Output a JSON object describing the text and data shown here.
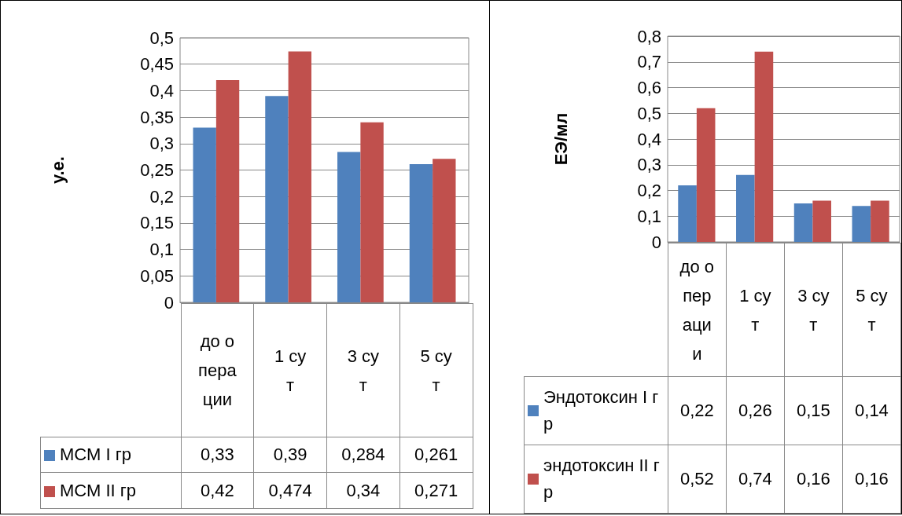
{
  "chart_data": [
    {
      "type": "bar",
      "ylabel": "у.е.",
      "categories": [
        "до операции",
        "1 сут",
        "3 сут",
        "5 сут"
      ],
      "ylim": [
        0,
        0.5
      ],
      "yticks": [
        0,
        {
          "value": 0.05,
          "label": "0,05"
        },
        {
          "value": 0.1,
          "label": "0,1"
        },
        {
          "value": 0.15,
          "label": "0,15"
        },
        {
          "value": 0.2,
          "label": "0,2"
        },
        {
          "value": 0.25,
          "label": "0,25"
        },
        {
          "value": 0.3,
          "label": "0,3"
        },
        {
          "value": 0.35,
          "label": "0,35"
        },
        {
          "value": 0.4,
          "label": "0,4"
        },
        {
          "value": 0.45,
          "label": "0,45"
        },
        {
          "value": 0.5,
          "label": "0,5"
        }
      ],
      "grid": "y",
      "legend": "bottom",
      "series": [
        {
          "name": "МСМ I гр",
          "color": "#4f81bd",
          "values": [
            0.33,
            0.39,
            0.284,
            0.261
          ],
          "value_labels": [
            "0,33",
            "0,39",
            "0,284",
            "0,261"
          ]
        },
        {
          "name": "МСМ II гр",
          "color": "#c0504d",
          "values": [
            0.42,
            0.474,
            0.34,
            0.271
          ],
          "value_labels": [
            "0,42",
            "0,474",
            "0,34",
            "0,271"
          ]
        }
      ]
    },
    {
      "type": "bar",
      "ylabel": "ЕЭ/мл",
      "categories": [
        "до операции",
        "1 сут",
        "3 сут",
        "5 сут"
      ],
      "ylim": [
        0,
        0.8
      ],
      "yticks": [
        0,
        {
          "value": 0.1,
          "label": "0,1"
        },
        {
          "value": 0.2,
          "label": "0,2"
        },
        {
          "value": 0.3,
          "label": "0,3"
        },
        {
          "value": 0.4,
          "label": "0,4"
        },
        {
          "value": 0.5,
          "label": "0,5"
        },
        {
          "value": 0.6,
          "label": "0,6"
        },
        {
          "value": 0.7,
          "label": "0,7"
        },
        {
          "value": 0.8,
          "label": "0,8"
        }
      ],
      "grid": "y",
      "legend": "bottom",
      "series": [
        {
          "name": "Эндотоксин I гр",
          "color": "#4f81bd",
          "values": [
            0.22,
            0.26,
            0.15,
            0.14
          ],
          "value_labels": [
            "0,22",
            "0,26",
            "0,15",
            "0,14"
          ]
        },
        {
          "name": "эндотоксин II гр",
          "color": "#c0504d",
          "values": [
            0.52,
            0.74,
            0.16,
            0.16
          ],
          "value_labels": [
            "0,52",
            "0,74",
            "0,16",
            "0,16"
          ]
        }
      ]
    }
  ]
}
